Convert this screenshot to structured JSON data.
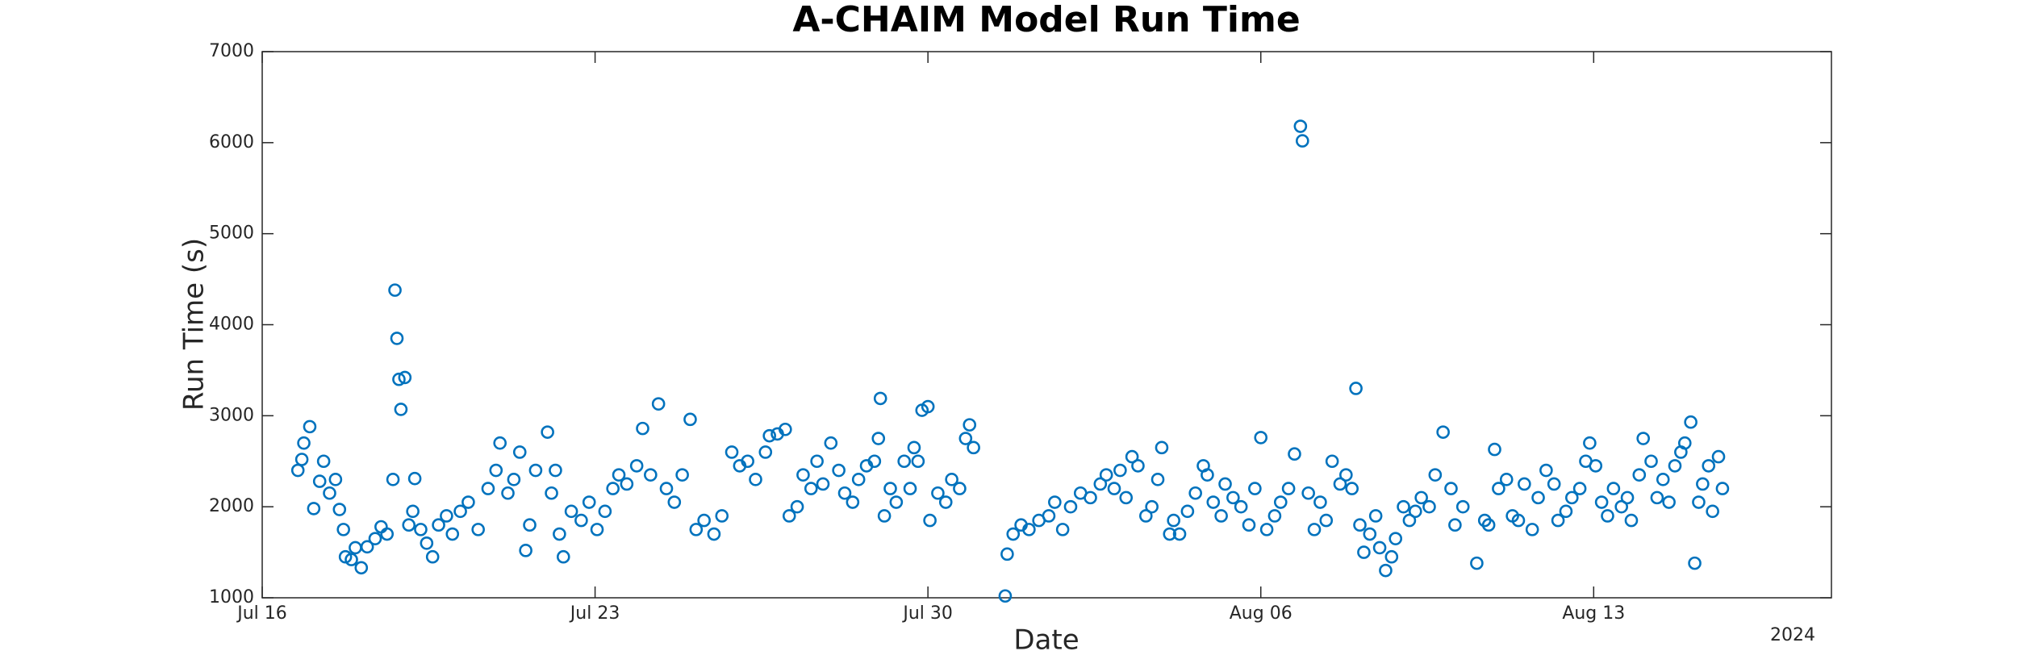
{
  "chart_data": {
    "type": "scatter",
    "title": "A-CHAIM Model Run Time",
    "x_label": "Date",
    "y_label": "Run Time (s)",
    "x_year_label": "2024",
    "color": "#0072BD",
    "marker": "open-circle",
    "xlim": [
      "2024-07-16T00:00",
      "2024-08-18T00:00"
    ],
    "xticks": [
      {
        "value": "2024-07-16T00:00",
        "label": "Jul 16"
      },
      {
        "value": "2024-07-23T00:00",
        "label": "Jul 23"
      },
      {
        "value": "2024-07-30T00:00",
        "label": "Jul 30"
      },
      {
        "value": "2024-08-06T00:00",
        "label": "Aug 06"
      },
      {
        "value": "2024-08-13T00:00",
        "label": "Aug 13"
      }
    ],
    "ylim": [
      1000,
      7000
    ],
    "yticks": [
      1000,
      2000,
      3000,
      4000,
      5000,
      6000,
      7000
    ],
    "x": [
      "2024-07-16T18:00",
      "2024-07-16T20:00",
      "2024-07-16T21:00",
      "2024-07-17T00:00",
      "2024-07-17T02:00",
      "2024-07-17T05:00",
      "2024-07-17T07:00",
      "2024-07-17T10:00",
      "2024-07-17T13:00",
      "2024-07-17T15:00",
      "2024-07-17T17:00",
      "2024-07-17T18:00",
      "2024-07-17T21:00",
      "2024-07-17T23:00",
      "2024-07-18T02:00",
      "2024-07-18T05:00",
      "2024-07-18T09:00",
      "2024-07-18T12:00",
      "2024-07-18T15:00",
      "2024-07-18T18:00",
      "2024-07-18T19:00",
      "2024-07-18T20:00",
      "2024-07-18T21:00",
      "2024-07-18T22:00",
      "2024-07-19T00:00",
      "2024-07-19T02:00",
      "2024-07-19T04:00",
      "2024-07-19T05:00",
      "2024-07-19T08:00",
      "2024-07-19T11:00",
      "2024-07-19T14:00",
      "2024-07-19T17:00",
      "2024-07-19T21:00",
      "2024-07-20T00:00",
      "2024-07-20T04:00",
      "2024-07-20T08:00",
      "2024-07-20T13:00",
      "2024-07-20T18:00",
      "2024-07-20T22:00",
      "2024-07-21T00:00",
      "2024-07-21T04:00",
      "2024-07-21T07:00",
      "2024-07-21T10:00",
      "2024-07-21T13:00",
      "2024-07-21T15:00",
      "2024-07-21T18:00",
      "2024-07-22T00:00",
      "2024-07-22T02:00",
      "2024-07-22T04:00",
      "2024-07-22T06:00",
      "2024-07-22T08:00",
      "2024-07-22T12:00",
      "2024-07-22T17:00",
      "2024-07-22T21:00",
      "2024-07-23T01:00",
      "2024-07-23T05:00",
      "2024-07-23T09:00",
      "2024-07-23T12:00",
      "2024-07-23T16:00",
      "2024-07-23T21:00",
      "2024-07-24T00:00",
      "2024-07-24T04:00",
      "2024-07-24T08:00",
      "2024-07-24T12:00",
      "2024-07-24T16:00",
      "2024-07-24T20:00",
      "2024-07-25T00:00",
      "2024-07-25T03:00",
      "2024-07-25T07:00",
      "2024-07-25T12:00",
      "2024-07-25T16:00",
      "2024-07-25T21:00",
      "2024-07-26T01:00",
      "2024-07-26T05:00",
      "2024-07-26T09:00",
      "2024-07-26T14:00",
      "2024-07-26T16:00",
      "2024-07-26T20:00",
      "2024-07-27T00:00",
      "2024-07-27T02:00",
      "2024-07-27T06:00",
      "2024-07-27T09:00",
      "2024-07-27T13:00",
      "2024-07-27T16:00",
      "2024-07-27T19:00",
      "2024-07-27T23:00",
      "2024-07-28T03:00",
      "2024-07-28T06:00",
      "2024-07-28T10:00",
      "2024-07-28T13:00",
      "2024-07-28T17:00",
      "2024-07-28T21:00",
      "2024-07-28T23:00",
      "2024-07-29T00:00",
      "2024-07-29T02:00",
      "2024-07-29T05:00",
      "2024-07-29T08:00",
      "2024-07-29T12:00",
      "2024-07-29T15:00",
      "2024-07-29T17:00",
      "2024-07-29T19:00",
      "2024-07-29T21:00",
      "2024-07-30T00:00",
      "2024-07-30T01:00",
      "2024-07-30T05:00",
      "2024-07-30T09:00",
      "2024-07-30T12:00",
      "2024-07-30T16:00",
      "2024-07-30T19:00",
      "2024-07-30T21:00",
      "2024-07-30T23:00",
      "2024-07-31T15:00",
      "2024-07-31T16:00",
      "2024-07-31T19:00",
      "2024-07-31T23:00",
      "2024-08-01T03:00",
      "2024-08-01T08:00",
      "2024-08-01T13:00",
      "2024-08-01T16:00",
      "2024-08-01T20:00",
      "2024-08-02T00:00",
      "2024-08-02T05:00",
      "2024-08-02T10:00",
      "2024-08-02T15:00",
      "2024-08-02T18:00",
      "2024-08-02T22:00",
      "2024-08-03T01:00",
      "2024-08-03T04:00",
      "2024-08-03T07:00",
      "2024-08-03T10:00",
      "2024-08-03T14:00",
      "2024-08-03T17:00",
      "2024-08-03T20:00",
      "2024-08-03T22:00",
      "2024-08-04T02:00",
      "2024-08-04T04:00",
      "2024-08-04T07:00",
      "2024-08-04T11:00",
      "2024-08-04T15:00",
      "2024-08-04T19:00",
      "2024-08-04T21:00",
      "2024-08-05T00:00",
      "2024-08-05T04:00",
      "2024-08-05T06:00",
      "2024-08-05T10:00",
      "2024-08-05T14:00",
      "2024-08-05T18:00",
      "2024-08-05T21:00",
      "2024-08-06T00:00",
      "2024-08-06T03:00",
      "2024-08-06T07:00",
      "2024-08-06T10:00",
      "2024-08-06T14:00",
      "2024-08-06T17:00",
      "2024-08-06T20:00",
      "2024-08-06T21:00",
      "2024-08-07T00:00",
      "2024-08-07T03:00",
      "2024-08-07T06:00",
      "2024-08-07T09:00",
      "2024-08-07T12:00",
      "2024-08-07T16:00",
      "2024-08-07T19:00",
      "2024-08-07T22:00",
      "2024-08-08T00:00",
      "2024-08-08T02:00",
      "2024-08-08T04:00",
      "2024-08-08T07:00",
      "2024-08-08T10:00",
      "2024-08-08T12:00",
      "2024-08-08T15:00",
      "2024-08-08T18:00",
      "2024-08-08T20:00",
      "2024-08-09T00:00",
      "2024-08-09T03:00",
      "2024-08-09T06:00",
      "2024-08-09T09:00",
      "2024-08-09T13:00",
      "2024-08-09T16:00",
      "2024-08-09T20:00",
      "2024-08-10T00:00",
      "2024-08-10T02:00",
      "2024-08-10T06:00",
      "2024-08-10T13:00",
      "2024-08-10T17:00",
      "2024-08-10T19:00",
      "2024-08-10T22:00",
      "2024-08-11T00:00",
      "2024-08-11T04:00",
      "2024-08-11T07:00",
      "2024-08-11T10:00",
      "2024-08-11T13:00",
      "2024-08-11T17:00",
      "2024-08-11T20:00",
      "2024-08-12T00:00",
      "2024-08-12T04:00",
      "2024-08-12T06:00",
      "2024-08-12T10:00",
      "2024-08-12T13:00",
      "2024-08-12T17:00",
      "2024-08-12T20:00",
      "2024-08-12T22:00",
      "2024-08-13T01:00",
      "2024-08-13T04:00",
      "2024-08-13T07:00",
      "2024-08-13T10:00",
      "2024-08-13T14:00",
      "2024-08-13T17:00",
      "2024-08-13T19:00",
      "2024-08-13T23:00",
      "2024-08-14T01:00",
      "2024-08-14T05:00",
      "2024-08-14T08:00",
      "2024-08-14T11:00",
      "2024-08-14T14:00",
      "2024-08-14T17:00",
      "2024-08-14T20:00",
      "2024-08-14T22:00",
      "2024-08-15T01:00",
      "2024-08-15T03:00",
      "2024-08-15T05:00",
      "2024-08-15T07:00",
      "2024-08-15T10:00",
      "2024-08-15T12:00",
      "2024-08-15T15:00",
      "2024-08-15T17:00"
    ],
    "values": [
      2400,
      2520,
      2700,
      2880,
      1980,
      2280,
      2500,
      2150,
      2300,
      1970,
      1750,
      1450,
      1420,
      1550,
      1330,
      1560,
      1650,
      1780,
      1700,
      2300,
      4380,
      3850,
      3400,
      3070,
      3420,
      1800,
      1950,
      2310,
      1750,
      1600,
      1450,
      1800,
      1900,
      1700,
      1950,
      2050,
      1750,
      2200,
      2400,
      2700,
      2150,
      2300,
      2600,
      1520,
      1800,
      2400,
      2820,
      2150,
      2400,
      1700,
      1450,
      1950,
      1850,
      2050,
      1750,
      1950,
      2200,
      2350,
      2250,
      2450,
      2860,
      2350,
      3130,
      2200,
      2050,
      2350,
      2960,
      1750,
      1850,
      1700,
      1900,
      2600,
      2450,
      2500,
      2300,
      2600,
      2780,
      2800,
      2850,
      1900,
      2000,
      2350,
      2200,
      2500,
      2250,
      2700,
      2400,
      2150,
      2050,
      2300,
      2450,
      2500,
      2750,
      3190,
      1900,
      2200,
      2050,
      2500,
      2200,
      2650,
      2500,
      3060,
      3100,
      1850,
      2150,
      2050,
      2300,
      2200,
      2750,
      2900,
      2650,
      1020,
      1480,
      1700,
      1800,
      1750,
      1850,
      1900,
      2050,
      1750,
      2000,
      2150,
      2100,
      2250,
      2350,
      2200,
      2400,
      2100,
      2550,
      2450,
      1900,
      2000,
      2300,
      2650,
      1700,
      1850,
      1700,
      1950,
      2150,
      2450,
      2350,
      2050,
      1900,
      2250,
      2100,
      2000,
      1800,
      2200,
      2760,
      1750,
      1900,
      2050,
      2200,
      2580,
      6180,
      6020,
      2150,
      1750,
      2050,
      1850,
      2500,
      2250,
      2350,
      2200,
      3300,
      1800,
      1500,
      1700,
      1900,
      1550,
      1300,
      1450,
      1650,
      2000,
      1850,
      1950,
      2100,
      2000,
      2350,
      2820,
      2200,
      1800,
      2000,
      1380,
      1850,
      1800,
      2630,
      2200,
      2300,
      1900,
      1850,
      2250,
      1750,
      2100,
      2400,
      2250,
      1850,
      1950,
      2100,
      2200,
      2500,
      2700,
      2450,
      2050,
      1900,
      2200,
      2000,
      2100,
      1850,
      2350,
      2750,
      2500,
      2100,
      2300,
      2050,
      2450,
      2600,
      2700,
      2930,
      1380,
      2050,
      2250,
      2450,
      1950,
      2550,
      2200
    ]
  }
}
